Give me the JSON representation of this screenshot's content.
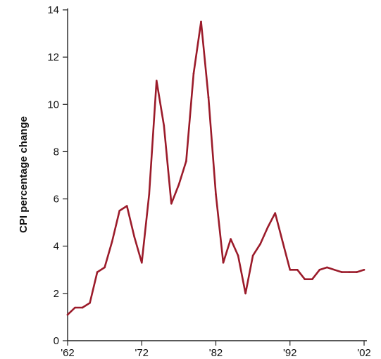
{
  "chart_data": {
    "type": "line",
    "title": "",
    "xlabel": "",
    "ylabel": "CPI percentage change",
    "xlim": [
      1962,
      2002
    ],
    "ylim": [
      0,
      14
    ],
    "yticks": [
      0,
      2,
      4,
      6,
      8,
      10,
      12,
      14
    ],
    "xticks": [
      {
        "value": 1962,
        "label": "'62"
      },
      {
        "value": 1972,
        "label": "'72"
      },
      {
        "value": 1982,
        "label": "'82"
      },
      {
        "value": 1992,
        "label": "'92"
      },
      {
        "value": 2002,
        "label": "'02"
      }
    ],
    "grid": false,
    "line_color": "#9b1b2a",
    "series": [
      {
        "name": "",
        "x": [
          1962,
          1963,
          1964,
          1965,
          1966,
          1967,
          1968,
          1969,
          1970,
          1971,
          1972,
          1973,
          1974,
          1975,
          1976,
          1977,
          1978,
          1979,
          1980,
          1981,
          1982,
          1983,
          1984,
          1985,
          1986,
          1987,
          1988,
          1989,
          1990,
          1991,
          1992,
          1993,
          1994,
          1995,
          1996,
          1997,
          1998,
          1999,
          2000,
          2001,
          2002
        ],
        "values": [
          1.1,
          1.4,
          1.4,
          1.6,
          2.9,
          3.1,
          4.2,
          5.5,
          5.7,
          4.4,
          3.3,
          6.2,
          11.0,
          9.1,
          5.8,
          6.6,
          7.6,
          11.3,
          13.5,
          10.3,
          6.2,
          3.3,
          4.3,
          3.6,
          2.0,
          3.6,
          4.1,
          4.8,
          5.4,
          4.2,
          3.0,
          3.0,
          2.6,
          2.6,
          3.0,
          3.1,
          3.0,
          2.9,
          2.9,
          2.9,
          3.0
        ]
      }
    ]
  }
}
